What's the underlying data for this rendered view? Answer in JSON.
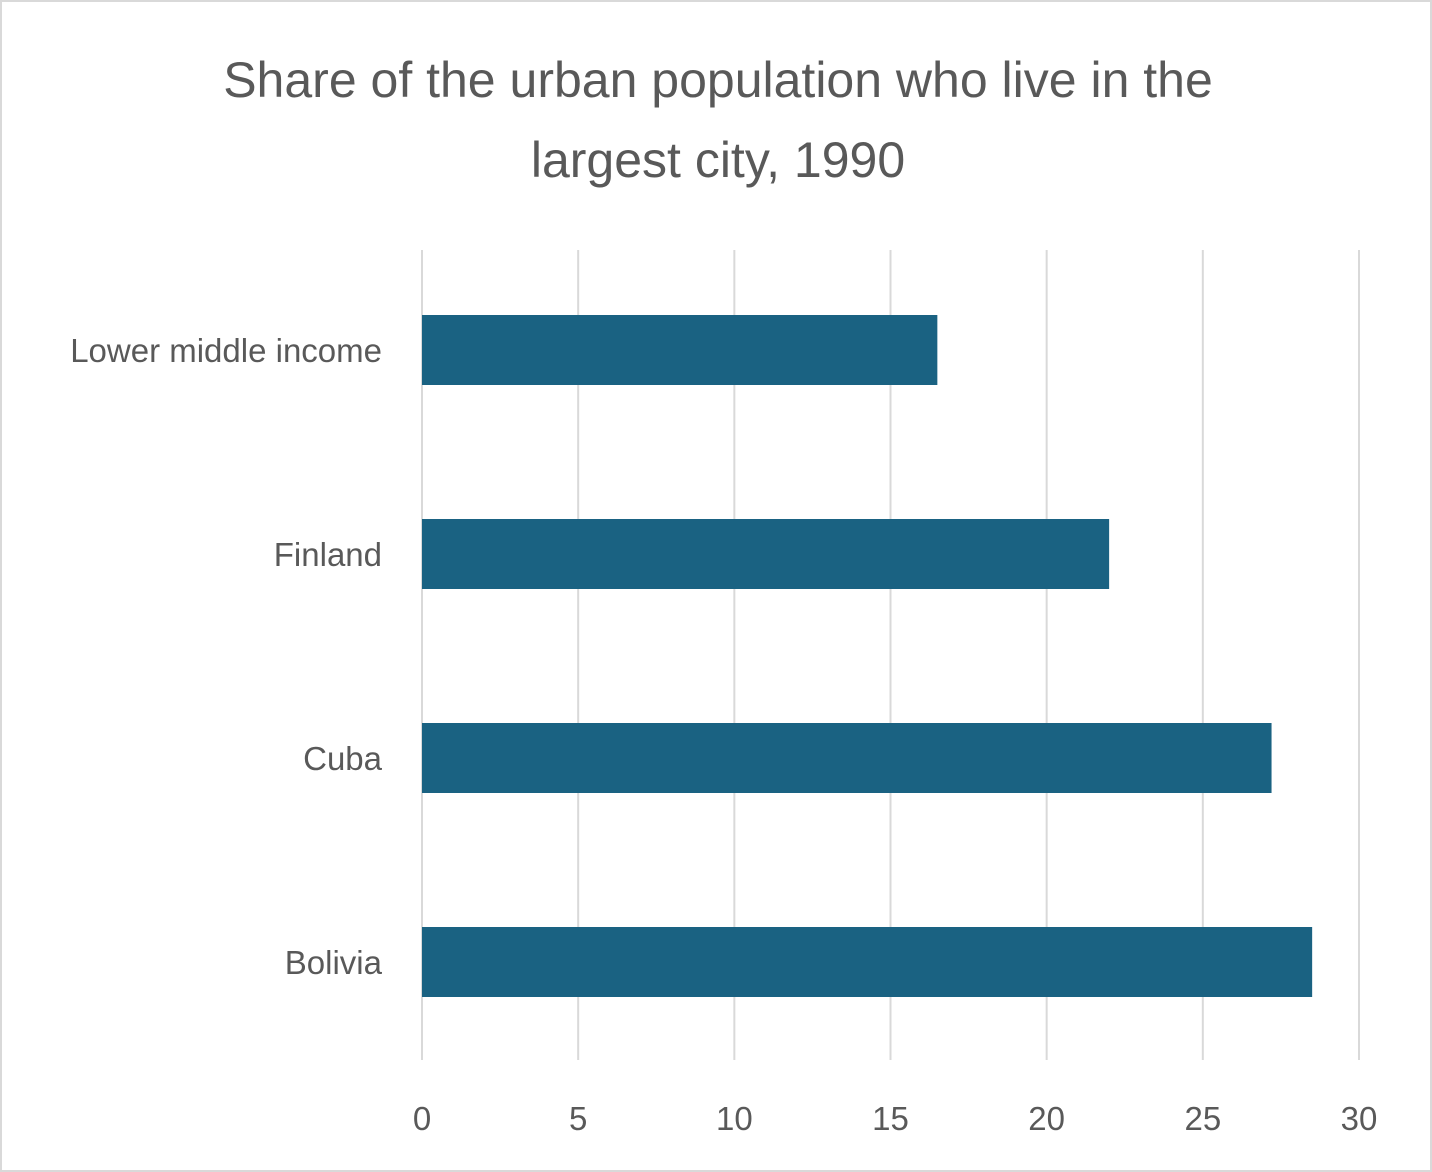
{
  "chart_data": {
    "type": "bar",
    "orientation": "horizontal",
    "title": "Share of the urban population who live in the largest city, 1990",
    "categories": [
      "Lower middle income",
      "Finland",
      "Cuba",
      "Bolivia"
    ],
    "values": [
      16.5,
      22.0,
      27.2,
      28.5
    ],
    "xlabel": "",
    "ylabel": "",
    "xlim": [
      0,
      30
    ],
    "xticks": [
      0,
      5,
      10,
      15,
      20,
      25,
      30
    ],
    "grid": "vertical",
    "bar_color": "#1a6282",
    "legend": "none"
  }
}
